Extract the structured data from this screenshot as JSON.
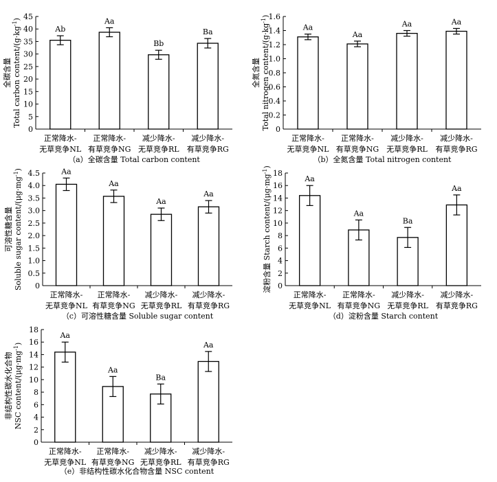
{
  "chart_data": [
    {
      "type": "bar",
      "caption": "（a）全碳含量 Total carbon content",
      "ylabel_cn": "全碳含量",
      "ylabel_en": "Total carbon content/(g·kg",
      "ylabel_sup": "-1",
      "ylabel_close": ")",
      "categories": [
        [
          "正常降水-",
          "无草竞争NL"
        ],
        [
          "正常降水-",
          "有草竞争NG"
        ],
        [
          "减少降水-",
          "无草竞争RL"
        ],
        [
          "减少降水-",
          "有草竞争RG"
        ]
      ],
      "values": [
        35.5,
        38.7,
        29.7,
        34.3
      ],
      "errors": [
        1.8,
        1.8,
        1.8,
        1.9
      ],
      "letters": [
        "Ab",
        "Aa",
        "Bb",
        "Ba"
      ],
      "ylim": [
        0,
        45
      ],
      "yticks": [
        0,
        5,
        10,
        15,
        20,
        25,
        30,
        35,
        40,
        45
      ],
      "decimals": 0
    },
    {
      "type": "bar",
      "caption": "（b）全氮含量 Total nitrogen content",
      "ylabel_cn": "全氮含量",
      "ylabel_en": "Total nitrogen content/(g·kg",
      "ylabel_sup": "-1",
      "ylabel_close": ")",
      "categories": [
        [
          "正常降水-",
          "无草竞争NL"
        ],
        [
          "正常降水-",
          "有草竞争NG"
        ],
        [
          "减少降水-",
          "无草竞争RL"
        ],
        [
          "减少降水-",
          "有草竞争RG"
        ]
      ],
      "values": [
        1.31,
        1.21,
        1.36,
        1.39
      ],
      "errors": [
        0.04,
        0.04,
        0.04,
        0.04
      ],
      "letters": [
        "Aa",
        "Aa",
        "Aa",
        "Aa"
      ],
      "ylim": [
        0,
        1.6
      ],
      "yticks": [
        0,
        0.2,
        0.4,
        0.6,
        0.8,
        1.0,
        1.2,
        1.4,
        1.6
      ],
      "decimals": 1
    },
    {
      "type": "bar",
      "caption": "（c）可溶性糖含量 Soluble sugar content",
      "ylabel_cn": "可溶性糖含量",
      "ylabel_en": "Soluble sugar content/(μg·mg",
      "ylabel_sup": "-1",
      "ylabel_close": ")",
      "categories": [
        [
          "正常降水-",
          "无草竞争NL"
        ],
        [
          "正常降水-",
          "有草竞争NG"
        ],
        [
          "减少降水-",
          "无草竞争RL"
        ],
        [
          "减少降水-",
          "有草竞争RG"
        ]
      ],
      "values": [
        4.05,
        3.57,
        2.85,
        3.15
      ],
      "errors": [
        0.25,
        0.25,
        0.25,
        0.25
      ],
      "letters": [
        "Aa",
        "Aa",
        "Aa",
        "Aa"
      ],
      "ylim": [
        0,
        4.5
      ],
      "yticks": [
        0,
        0.5,
        1.0,
        1.5,
        2.0,
        2.5,
        3.0,
        3.5,
        4.0,
        4.5
      ],
      "decimals": 1
    },
    {
      "type": "bar",
      "caption": "（d）淀粉含量 Starch content",
      "ylabel_cn": "淀粉含量 Starch content/(μg·mg",
      "ylabel_en": "",
      "ylabel_sup": "-1",
      "ylabel_close": ")",
      "categories": [
        [
          "正常降水-",
          "无草竞争NL"
        ],
        [
          "正常降水-",
          "有草竞争NG"
        ],
        [
          "减少降水-",
          "无草竞争RL"
        ],
        [
          "减少降水-",
          "有草竞争RG"
        ]
      ],
      "values": [
        14.4,
        8.9,
        7.7,
        12.9
      ],
      "errors": [
        1.6,
        1.6,
        1.6,
        1.6
      ],
      "letters": [
        "Aa",
        "Aa",
        "Ba",
        "Aa"
      ],
      "ylim": [
        0,
        18
      ],
      "yticks": [
        0,
        2,
        4,
        6,
        8,
        10,
        12,
        14,
        16,
        18
      ],
      "decimals": 0
    },
    {
      "type": "bar",
      "caption": "（e）非结构性碳水化合物含量 NSC content",
      "ylabel_cn": "非结构性碳水化合物",
      "ylabel_en": "NSC content/(μg·mg",
      "ylabel_sup": "-1",
      "ylabel_close": ")",
      "categories": [
        [
          "正常降水-",
          "无草竞争NL"
        ],
        [
          "正常降水-",
          "有草竞争NG"
        ],
        [
          "减少降水-",
          "无草竞争RL"
        ],
        [
          "减少降水-",
          "有草竞争RG"
        ]
      ],
      "values": [
        14.4,
        8.9,
        7.7,
        12.9
      ],
      "errors": [
        1.6,
        1.6,
        1.6,
        1.6
      ],
      "letters": [
        "Aa",
        "Aa",
        "Ba",
        "Aa"
      ],
      "ylim": [
        0,
        18
      ],
      "yticks": [
        0,
        2,
        4,
        6,
        8,
        10,
        12,
        14,
        16,
        18
      ],
      "decimals": 0
    }
  ]
}
